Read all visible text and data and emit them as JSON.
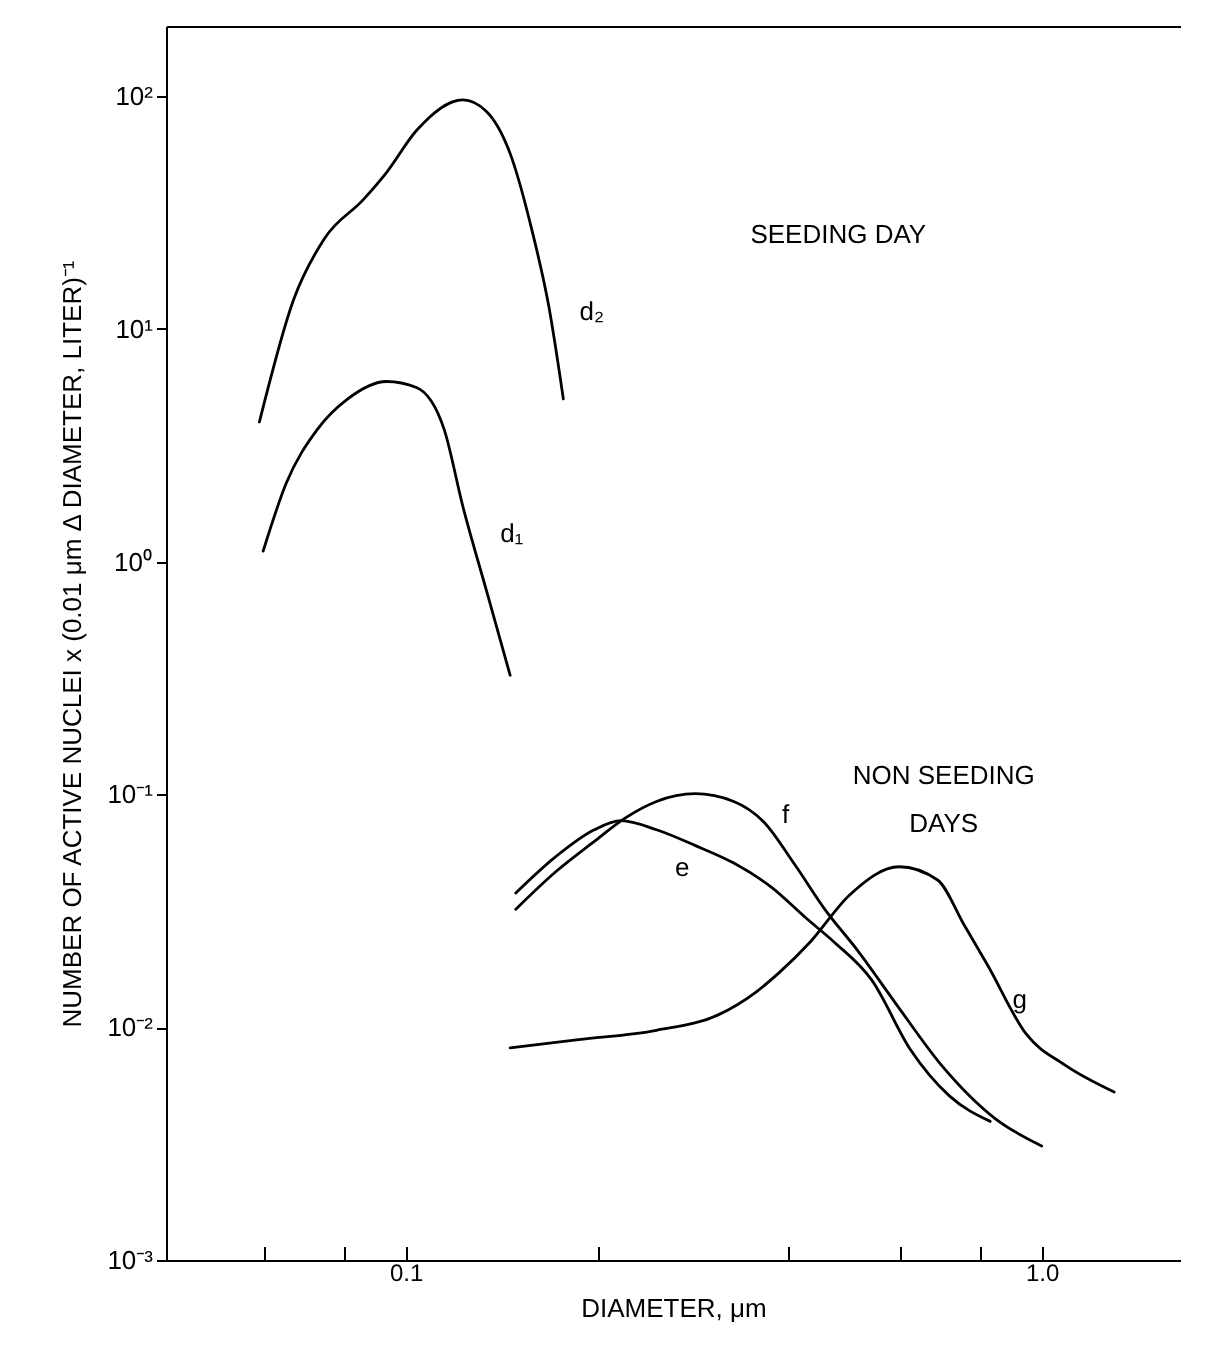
{
  "chart_data": {
    "type": "line",
    "xlabel": "DIAMETER, μm",
    "ylabel": "NUMBER OF ACTIVE NUCLEI  x (0.01 μm Δ DIAMETER, LITER)⁻¹",
    "log": "xy",
    "marker": "none",
    "line_style": "solid",
    "xlim": [
      0.042,
      1.65
    ],
    "ylim": [
      0.001,
      200
    ],
    "xticks": [
      {
        "value": 0.06,
        "label": null
      },
      {
        "value": 0.08,
        "label": null
      },
      0.1,
      {
        "value": 0.2,
        "label": null
      },
      {
        "value": 0.4,
        "label": null
      },
      {
        "value": 0.6,
        "label": null
      },
      {
        "value": 0.8,
        "label": null
      },
      {
        "value": 1,
        "label": "1.0"
      }
    ],
    "yticks": [
      {
        "value": 0.001,
        "label": "10⁻³"
      },
      {
        "value": 0.01,
        "label": "10⁻²"
      },
      {
        "value": 0.1,
        "label": "10⁻¹"
      },
      {
        "value": 1,
        "label": "10⁰"
      },
      {
        "value": 10,
        "label": "10¹"
      },
      {
        "value": 100,
        "label": "10²"
      }
    ],
    "series": [
      {
        "name": "d₂",
        "color": "#000000",
        "x": [
          0.0589,
          0.0667,
          0.0746,
          0.0858,
          0.0933,
          0.104,
          0.123,
          0.134,
          0.146,
          0.158,
          0.168,
          0.177
        ],
        "values": [
          3.98,
          13.4,
          24.5,
          35.9,
          46.9,
          71.1,
          96.3,
          85.9,
          56.6,
          26.5,
          12.4,
          5.0
        ]
      },
      {
        "name": "d₁",
        "color": "#000000",
        "x": [
          0.0597,
          0.0649,
          0.0726,
          0.0811,
          0.0933,
          0.104,
          0.115,
          0.123,
          0.134,
          0.146
        ],
        "values": [
          1.11,
          2.17,
          3.69,
          5.0,
          5.94,
          5.6,
          3.69,
          1.73,
          0.75,
          0.325
        ]
      },
      {
        "name": "e",
        "color": "#000000",
        "x": [
          0.149,
          0.172,
          0.198,
          0.218,
          0.248,
          0.285,
          0.328,
          0.377,
          0.427,
          0.471,
          0.541,
          0.622,
          0.716,
          0.83
        ],
        "values": [
          0.0377,
          0.0539,
          0.0705,
          0.0771,
          0.0705,
          0.0604,
          0.0507,
          0.0397,
          0.0293,
          0.0233,
          0.0159,
          0.008,
          0.00507,
          0.00394
        ]
      },
      {
        "name": "f",
        "color": "#000000",
        "x": [
          0.149,
          0.172,
          0.198,
          0.221,
          0.248,
          0.285,
          0.328,
          0.366,
          0.409,
          0.458,
          0.512,
          0.589,
          0.695,
          0.846,
          1.0
        ],
        "values": [
          0.0321,
          0.0464,
          0.0628,
          0.0789,
          0.0933,
          0.1007,
          0.0933,
          0.076,
          0.05,
          0.0316,
          0.0216,
          0.0127,
          0.00689,
          0.00404,
          0.00309
        ]
      },
      {
        "name": "g",
        "color": "#000000",
        "x": [
          0.146,
          0.187,
          0.248,
          0.31,
          0.356,
          0.387,
          0.433,
          0.498,
          0.597,
          0.686,
          0.757,
          0.822,
          0.946,
          1.087,
          1.3
        ],
        "values": [
          0.00815,
          0.00885,
          0.0097,
          0.0113,
          0.0142,
          0.0172,
          0.0233,
          0.0368,
          0.0489,
          0.0429,
          0.0272,
          0.0185,
          0.00933,
          0.00689,
          0.00527
        ]
      }
    ],
    "annotations": [
      "SEEDING DAY",
      "NON SEEDING\nDAYS"
    ]
  }
}
